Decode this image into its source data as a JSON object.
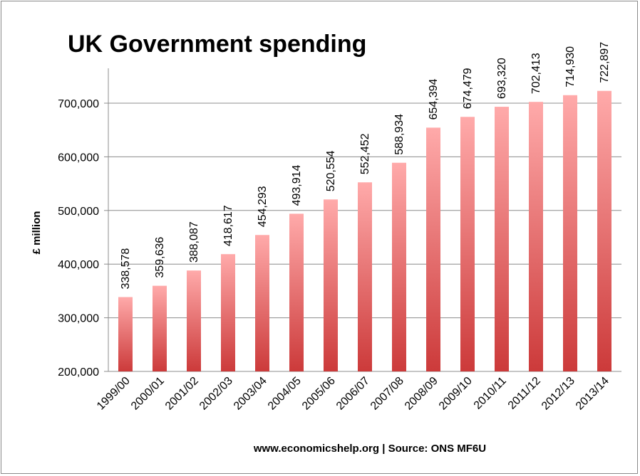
{
  "chart_data": {
    "type": "bar",
    "title": "UK Government spending",
    "ylabel": "£ million",
    "xlabel": "",
    "source": "www.economicshelp.org | Source: ONS MF6U",
    "ylim": [
      200000,
      765000
    ],
    "yticks": [
      200000,
      300000,
      400000,
      500000,
      600000,
      700000
    ],
    "ytick_labels": [
      "200,000",
      "300,000",
      "400,000",
      "500,000",
      "600,000",
      "700,000"
    ],
    "categories": [
      "1999/00",
      "2000/01",
      "2001/02",
      "2002/03",
      "2003/04",
      "2004/05",
      "2005/06",
      "2006/07",
      "2007/08",
      "2008/09",
      "2009/10",
      "2010/11",
      "2011/12",
      "2012/13",
      "2013/14"
    ],
    "values": [
      338578,
      359636,
      388087,
      418617,
      454293,
      493914,
      520554,
      552452,
      588934,
      654394,
      674479,
      693320,
      702413,
      714930,
      722897
    ],
    "value_labels": [
      "338,578",
      "359,636",
      "388,087",
      "418,617",
      "454,293",
      "493,914",
      "520,554",
      "552,452",
      "588,934",
      "654,394",
      "674,479",
      "693,320",
      "702,413",
      "714,930",
      "722,897"
    ],
    "grid": true,
    "legend": "none",
    "colors": {
      "bar_top": "#ffaaaa",
      "bar_bottom": "#cc3a3a"
    }
  }
}
